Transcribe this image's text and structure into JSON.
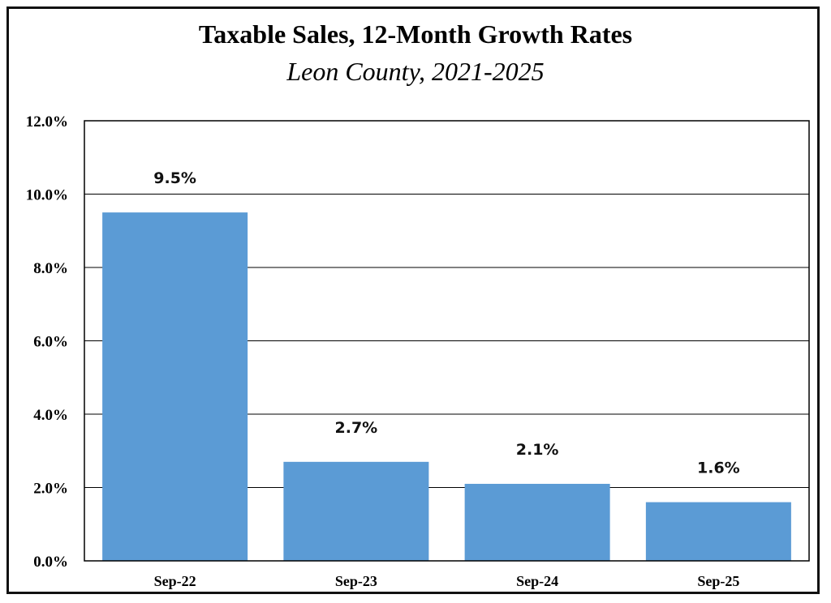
{
  "chart_data": {
    "type": "bar",
    "title": "Taxable Sales, 12-Month Growth Rates",
    "subtitle": "Leon County, 2021-2025",
    "categories": [
      "Sep-22",
      "Sep-23",
      "Sep-24",
      "Sep-25"
    ],
    "values": [
      9.5,
      2.7,
      2.1,
      1.6
    ],
    "data_labels": [
      "9.5%",
      "2.7%",
      "2.1%",
      "1.6%"
    ],
    "xlabel": "",
    "ylabel": "",
    "ylim": [
      0,
      12
    ],
    "yticks": [
      0,
      2,
      4,
      6,
      8,
      10,
      12
    ],
    "ytick_labels": [
      "0.0%",
      "2.0%",
      "4.0%",
      "6.0%",
      "8.0%",
      "10.0%",
      "12.0%"
    ],
    "grid": true,
    "legend": "none",
    "bar_color": "#5b9bd5"
  }
}
